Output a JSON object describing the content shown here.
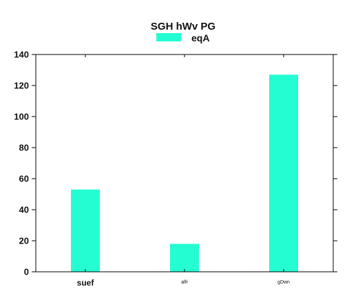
{
  "chart_data": {
    "type": "bar",
    "title": "SGH hWv  PG",
    "categories": [
      "suef",
      "alfr",
      "gDwn"
    ],
    "series": [
      {
        "name": "eqA",
        "values": [
          53,
          18,
          127
        ],
        "color": "#24fdd2"
      }
    ],
    "ylim": [
      0,
      140
    ],
    "yticks": [
      0,
      20,
      40,
      60,
      80,
      100,
      120,
      140
    ],
    "grid": false,
    "legend_position": "top-center",
    "xlabel": "",
    "ylabel": ""
  }
}
